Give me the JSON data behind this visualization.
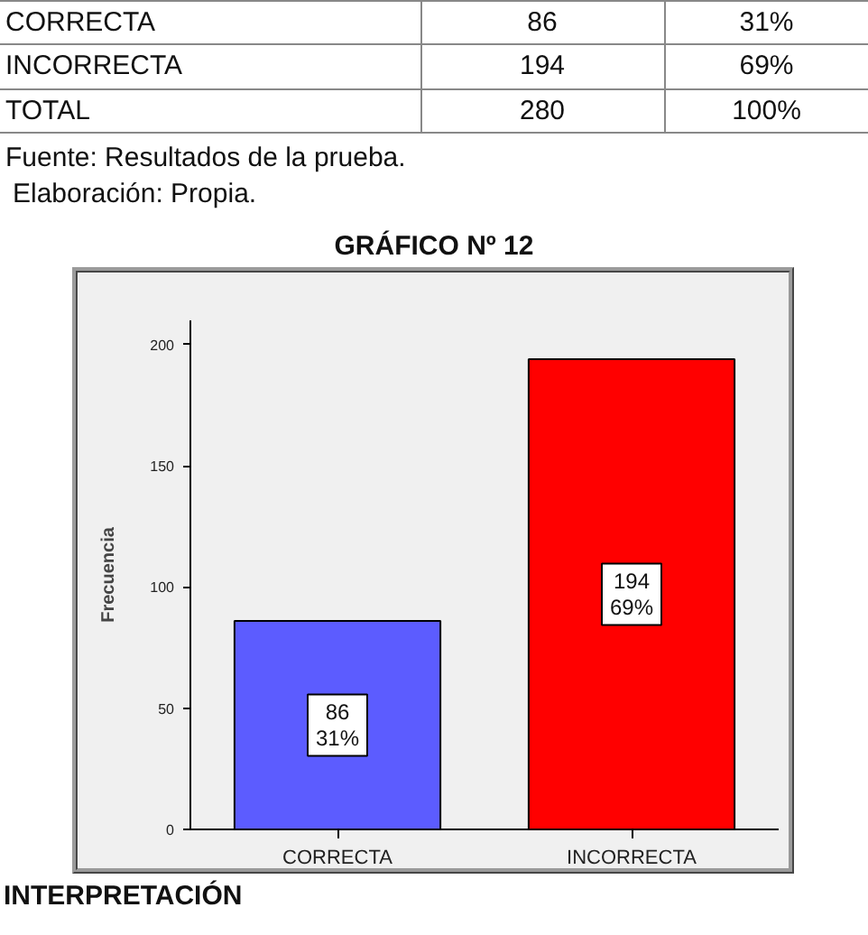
{
  "chart_data": {
    "type": "bar",
    "title": "GRÁFICO Nº 12",
    "ylabel": "Frecuencia",
    "categories": [
      "CORRECTA",
      "INCORRECTA"
    ],
    "values": [
      86,
      194
    ],
    "colors": [
      "#5c5cff",
      "#ff0000"
    ],
    "value_labels": [
      "86\n31%",
      "194\n69%"
    ],
    "ylim": [
      0,
      210
    ],
    "yticks": [
      0,
      50,
      100,
      150,
      200
    ],
    "grid": false,
    "annotations": [
      "CORRECTA",
      "86",
      "31%",
      "INCORRECTA",
      "194",
      "69%",
      "TOTAL",
      "280",
      "100%",
      "Fuente: Resultados de la prueba.",
      "Elaboración: Propia.",
      "INTERPRETACIÓN"
    ]
  }
}
